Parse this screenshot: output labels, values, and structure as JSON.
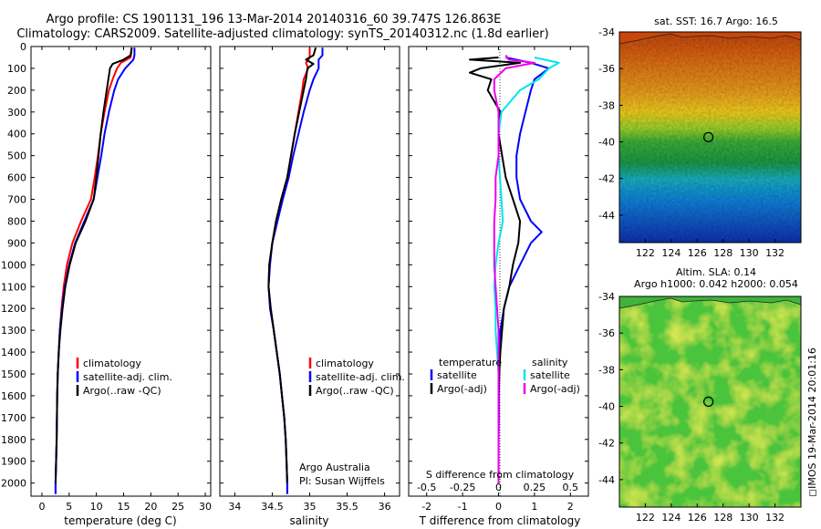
{
  "header": {
    "line1": "Argo profile: CS 1901131_196 13-Mar-2014 20140316_60 39.747S 126.863E",
    "line2": "Climatology: CARS2009. Satellite-adjusted climatology: synTS_20140312.nc (1.8d earlier)"
  },
  "maps": {
    "sst_title": "sat. SST: 16.7 Argo: 16.5",
    "sla_title_1": "Altim. SLA: 0.14",
    "sla_title_2": "Argo h1000: 0.042 h2000: 0.054",
    "lat_ticks": [
      "-34",
      "-36",
      "-38",
      "-40",
      "-42",
      "-44"
    ],
    "lon_ticks": [
      "122",
      "124",
      "126",
      "128",
      "130",
      "132"
    ],
    "argo_position": {
      "lon": 126.863,
      "lat": -39.747
    }
  },
  "stamp": "IMOS 19-Mar-2014 20:01:16",
  "annotations": {
    "source": "Argo Australia",
    "pi": "PI: Susan Wijffels"
  },
  "colors": {
    "climatology": "#ff0000",
    "satellite": "#0000ff",
    "argo": "#000000",
    "salinity_satellite": "#00e5ee",
    "salinity_argo": "#ee00ee"
  },
  "chart_data": [
    {
      "type": "line",
      "name": "temperature-profile",
      "xlabel": "temperature (deg C)",
      "xlim": [
        -2,
        31
      ],
      "xticks": [
        0,
        5,
        10,
        15,
        20,
        25,
        30
      ],
      "ylim": [
        2060,
        0
      ],
      "yticks": [
        0,
        100,
        200,
        300,
        400,
        500,
        600,
        700,
        800,
        900,
        1000,
        1100,
        1200,
        1300,
        1400,
        1500,
        1600,
        1700,
        1800,
        1900,
        2000
      ],
      "legend": [
        "climatology",
        "satellite-adj. clim.",
        "Argo(..raw -QC)"
      ],
      "series": [
        {
          "name": "climatology",
          "depth": [
            5,
            50,
            75,
            100,
            150,
            200,
            300,
            400,
            500,
            600,
            700,
            800,
            900,
            1000,
            1100,
            1200,
            1300,
            1400,
            1500,
            1600,
            1700,
            1800,
            1900,
            2000,
            2050
          ],
          "values": [
            16.5,
            16.3,
            14.5,
            13.8,
            13.0,
            12.3,
            11.5,
            10.8,
            10.3,
            9.7,
            9.0,
            7.2,
            5.6,
            4.6,
            4.0,
            3.6,
            3.3,
            3.1,
            2.9,
            2.8,
            2.75,
            2.7,
            2.6,
            2.5,
            2.5
          ]
        },
        {
          "name": "satellite-adj. clim.",
          "depth": [
            5,
            40,
            60,
            100,
            150,
            200,
            300,
            400,
            500,
            600,
            700,
            800,
            900,
            1000,
            1100,
            1200,
            1300,
            1400,
            1500,
            1600,
            1700,
            1800,
            1900,
            2000,
            2050
          ],
          "values": [
            17.0,
            17.0,
            16.8,
            15.3,
            14.0,
            13.3,
            12.3,
            11.5,
            10.9,
            10.2,
            9.5,
            7.8,
            6.1,
            5.0,
            4.2,
            3.7,
            3.3,
            3.1,
            2.9,
            2.8,
            2.75,
            2.7,
            2.6,
            2.5,
            2.5
          ]
        },
        {
          "name": "Argo(..raw -QC)",
          "depth": [
            5,
            40,
            60,
            80,
            100,
            150,
            200,
            300,
            400,
            500,
            600,
            700,
            800,
            900,
            1000,
            1100,
            1200,
            1300,
            1400,
            1500,
            1600,
            1700,
            1800,
            1900,
            2000
          ],
          "values": [
            16.5,
            16.3,
            15.0,
            13.0,
            12.5,
            12.2,
            11.9,
            11.3,
            10.8,
            10.4,
            10.0,
            9.5,
            8.0,
            6.2,
            5.1,
            4.3,
            3.8,
            3.4,
            3.1,
            2.9,
            2.8,
            2.75,
            2.7,
            2.6,
            2.5
          ]
        }
      ]
    },
    {
      "type": "line",
      "name": "salinity-profile",
      "xlabel": "salinity",
      "xlim": [
        33.8,
        36.2
      ],
      "xticks": [
        34,
        34.5,
        35,
        35.5,
        36
      ],
      "ylim": [
        2060,
        0
      ],
      "legend": [
        "climatology",
        "satellite-adj. clim.",
        "Argo(..raw -QC)"
      ],
      "series": [
        {
          "name": "climatology",
          "depth": [
            5,
            50,
            75,
            100,
            150,
            200,
            300,
            400,
            500,
            600,
            700,
            800,
            900,
            1000,
            1100,
            1200,
            1300,
            1400,
            1500,
            1600,
            1700,
            1800,
            1900,
            2000,
            2050
          ],
          "values": [
            35.0,
            35.0,
            34.95,
            34.98,
            34.92,
            34.9,
            34.85,
            34.8,
            34.75,
            34.7,
            34.62,
            34.55,
            34.5,
            34.46,
            34.45,
            34.48,
            34.52,
            34.56,
            34.6,
            34.63,
            34.66,
            34.68,
            34.69,
            34.7,
            34.7
          ]
        },
        {
          "name": "satellite-adj. clim.",
          "depth": [
            5,
            40,
            60,
            100,
            150,
            200,
            300,
            400,
            500,
            600,
            700,
            800,
            900,
            1000,
            1100,
            1200,
            1300,
            1400,
            1500,
            1600,
            1700,
            1800,
            1900,
            2000,
            2050
          ],
          "values": [
            35.17,
            35.17,
            35.12,
            35.12,
            35.05,
            35.0,
            34.92,
            34.85,
            34.78,
            34.72,
            34.64,
            34.57,
            34.5,
            34.47,
            34.45,
            34.47,
            34.52,
            34.56,
            34.6,
            34.63,
            34.66,
            34.68,
            34.69,
            34.7,
            34.7
          ]
        },
        {
          "name": "Argo(..raw -QC)",
          "depth": [
            5,
            40,
            60,
            80,
            100,
            150,
            200,
            300,
            400,
            500,
            600,
            700,
            800,
            900,
            1000,
            1100,
            1200,
            1300,
            1400,
            1500,
            1600,
            1700,
            1800,
            1900,
            2000
          ],
          "values": [
            35.08,
            35.05,
            34.95,
            35.05,
            34.97,
            34.95,
            34.92,
            34.86,
            34.8,
            34.75,
            34.7,
            34.62,
            34.55,
            34.5,
            34.46,
            34.45,
            34.48,
            34.52,
            34.56,
            34.6,
            34.63,
            34.66,
            34.68,
            34.69,
            34.7
          ]
        }
      ]
    },
    {
      "type": "line",
      "name": "difference-from-climatology",
      "xlabel": "T difference from climatology",
      "xlabel_top": "S difference from climatology",
      "xlim": [
        -2.5,
        2.5
      ],
      "xticks": [
        -2,
        -1,
        0,
        1,
        2
      ],
      "xticks_secondary": [
        "-0.5",
        "-0.25",
        "0",
        "0.25",
        "0.5"
      ],
      "ylim": [
        2060,
        0
      ],
      "legend_titles": [
        "temperature",
        "salinity"
      ],
      "legend": [
        "satellite",
        "Argo(-adj)",
        "satellite",
        "Argo(-adj)"
      ],
      "series": [
        {
          "name": "temperature satellite",
          "depth": [
            50,
            75,
            100,
            150,
            200,
            300,
            400,
            500,
            600,
            700,
            800,
            850,
            900,
            1000,
            1100,
            1200,
            1300,
            1400,
            1500,
            1600,
            1700,
            1800,
            1900,
            2000
          ],
          "values": [
            0.2,
            0.9,
            1.4,
            1.0,
            0.9,
            0.75,
            0.6,
            0.5,
            0.5,
            0.6,
            0.9,
            1.2,
            0.9,
            0.6,
            0.3,
            0.15,
            0.05,
            0.02,
            0.02,
            0.01,
            0.01,
            0.0,
            0.0,
            0.0
          ]
        },
        {
          "name": "temperature Argo(-adj)",
          "depth": [
            50,
            60,
            75,
            100,
            120,
            150,
            200,
            300,
            400,
            500,
            600,
            700,
            800,
            900,
            1000,
            1100,
            1200,
            1300,
            1400,
            1500,
            1600,
            1700,
            1800,
            1900,
            2000
          ],
          "values": [
            0.0,
            -0.8,
            0.6,
            -0.5,
            -0.8,
            -0.2,
            -0.3,
            0.05,
            0.0,
            0.1,
            0.2,
            0.4,
            0.6,
            0.55,
            0.4,
            0.3,
            0.15,
            0.1,
            0.05,
            0.02,
            0.0,
            0.0,
            0.0,
            0.0,
            0.0
          ]
        },
        {
          "name": "salinity satellite",
          "depth": [
            50,
            75,
            100,
            150,
            200,
            300,
            400,
            500,
            600,
            700,
            800,
            900,
            1000,
            1100,
            1200,
            1300,
            1400,
            1500,
            1600,
            1700,
            1800,
            1900,
            2000
          ],
          "values": [
            0.25,
            0.42,
            0.35,
            0.28,
            0.15,
            0.02,
            0.0,
            0.0,
            0.01,
            0.02,
            0.03,
            0.0,
            -0.02,
            -0.03,
            -0.02,
            -0.02,
            -0.01,
            0.0,
            0.0,
            0.0,
            0.0,
            0.0,
            0.0
          ]
        },
        {
          "name": "salinity Argo(-adj)",
          "depth": [
            40,
            60,
            75,
            100,
            150,
            200,
            300,
            400,
            500,
            600,
            700,
            800,
            900,
            1000,
            1100,
            1200,
            1300,
            1400,
            1500,
            1600,
            1700,
            1800,
            1900,
            2000
          ],
          "values": [
            0.05,
            0.07,
            0.25,
            0.05,
            -0.03,
            -0.03,
            0.0,
            0.0,
            0.0,
            -0.02,
            -0.02,
            -0.03,
            -0.03,
            -0.03,
            -0.02,
            -0.01,
            0.0,
            0.0,
            0.0,
            0.0,
            0.0,
            0.0,
            0.0,
            0.0
          ]
        }
      ]
    },
    {
      "type": "heatmap",
      "name": "satellite-sst-map",
      "title": "sat. SST: 16.7 Argo: 16.5",
      "xlim": [
        120,
        134
      ],
      "ylim": [
        -45.5,
        -34
      ],
      "colorscale": [
        "#0a2fc0",
        "#0a7fe0",
        "#19c0d8",
        "#1ea84a",
        "#3fc23a",
        "#9edc2a",
        "#ffe21e",
        "#ff9a1a",
        "#d2500a"
      ],
      "description_of_field": "warm (orange) in north near -34 to -36, green near -40, blue south of -42"
    },
    {
      "type": "heatmap",
      "name": "altimeter-sla-map",
      "title": "Altim. SLA: 0.14",
      "xlim": [
        120,
        134
      ],
      "ylim": [
        -45.5,
        -34
      ],
      "colorscale": [
        "#2a8c2a",
        "#3fbf3a",
        "#6fd23a",
        "#b9e42e",
        "#f2ea1e"
      ]
    }
  ]
}
